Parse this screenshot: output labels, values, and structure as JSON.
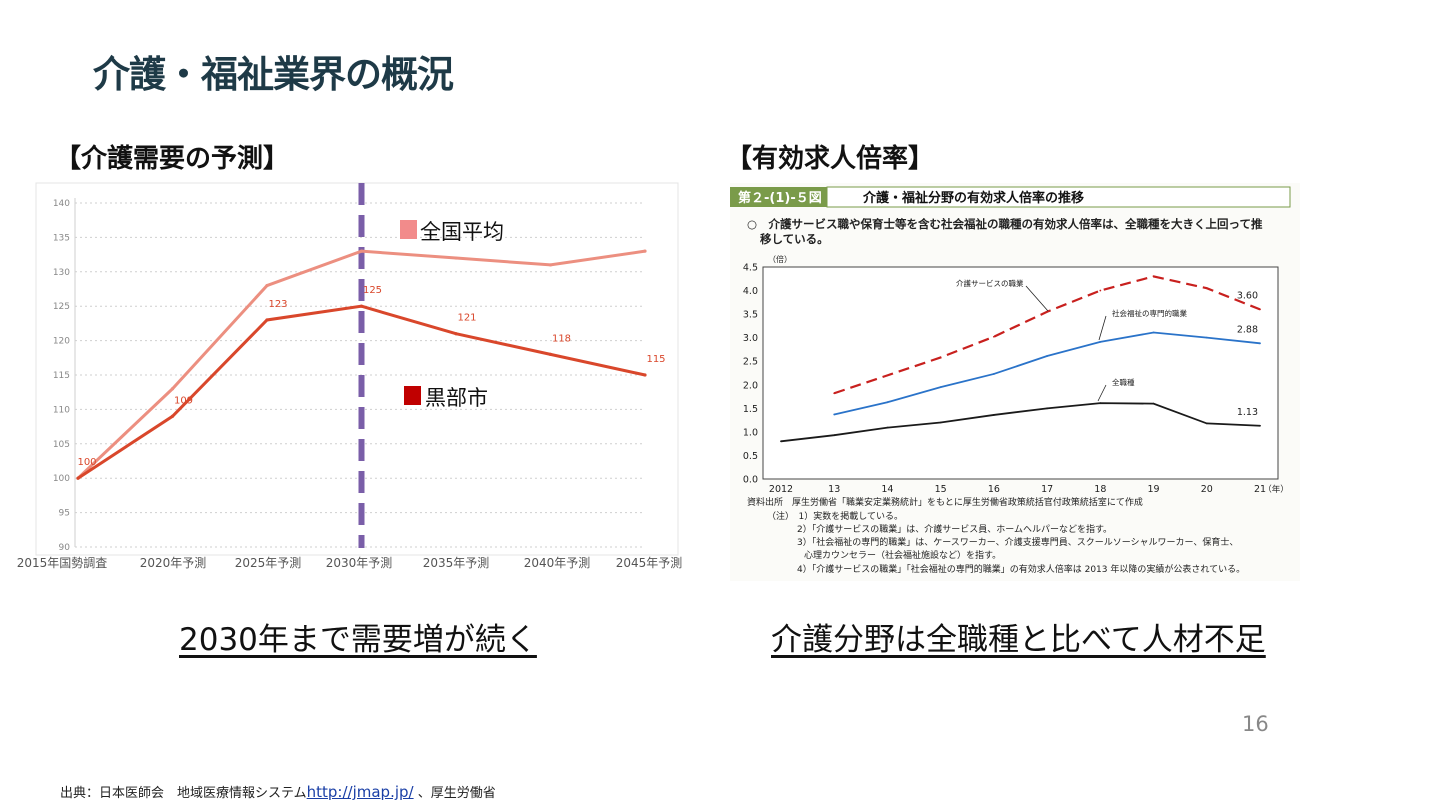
{
  "page": {
    "title": "介護・福祉業界の概況",
    "left_heading": "【介護需要の予測】",
    "right_heading": "【有効求人倍率】",
    "left_caption": "2030年まで需要増が続く",
    "right_caption": "介護分野は全職種と比べて人材不足",
    "page_number": "16",
    "source_prefix": "出典：日本医師会　地域医療情報システム",
    "source_link": "http://jmap.jp/",
    "source_suffix": " 、厚生労働省"
  },
  "chart_data": [
    {
      "type": "line",
      "categories": [
        "2015年国勢調査",
        "2020年予測",
        "2025年予測",
        "2030年予測",
        "2035年予測",
        "2040年予測",
        "2045年予測"
      ],
      "ylim": [
        90,
        140
      ],
      "yticks": [
        90,
        95,
        100,
        105,
        110,
        115,
        120,
        125,
        130,
        135,
        140
      ],
      "grid": true,
      "divider_category": "2030年予測",
      "series": [
        {
          "name": "全国平均",
          "color": "#ec8f80",
          "values": [
            100,
            113,
            128,
            133,
            132,
            131,
            133
          ]
        },
        {
          "name": "黒部市",
          "color": "#d9472b",
          "values": [
            100,
            109,
            123,
            125,
            121,
            118,
            115
          ],
          "data_labels": [
            "100",
            "109",
            "123",
            "125",
            "121",
            "118",
            "115"
          ]
        }
      ],
      "legend_colors": {
        "全国平均": "#f28b8b",
        "黒部市": "#c00000"
      }
    },
    {
      "type": "line",
      "header_tag": "第２-(1)-５図",
      "header_title": "介護・福祉分野の有効求人倍率の推移",
      "subtitle_line1": "○　介護サービス職や保育士等を含む社会福祉の職種の有効求人倍率は、全職種を大きく上回って推",
      "subtitle_line2": "移している。",
      "y_unit": "（倍）",
      "x_unit": "（年）",
      "categories": [
        "2012",
        "13",
        "14",
        "15",
        "16",
        "17",
        "18",
        "19",
        "20",
        "21"
      ],
      "ylim": [
        0.0,
        4.5
      ],
      "yticks": [
        "0.0",
        "0.5",
        "1.0",
        "1.5",
        "2.0",
        "2.5",
        "3.0",
        "3.5",
        "4.0",
        "4.5"
      ],
      "series": [
        {
          "name": "介護サービスの職業",
          "color": "#c8201e",
          "dash": true,
          "values": [
            null,
            1.82,
            2.2,
            2.58,
            3.02,
            3.55,
            4.0,
            4.3,
            4.05,
            3.6
          ],
          "end_label": "3.60"
        },
        {
          "name": "社会福祉の専門的職業",
          "color": "#2a73c9",
          "values": [
            null,
            1.37,
            1.63,
            1.95,
            2.23,
            2.61,
            2.91,
            3.11,
            3.0,
            2.88
          ],
          "end_label": "2.88"
        },
        {
          "name": "全職種",
          "color": "#1a1a1a",
          "values": [
            0.8,
            0.93,
            1.09,
            1.2,
            1.36,
            1.5,
            1.61,
            1.6,
            1.18,
            1.13
          ],
          "end_label": "1.13"
        }
      ],
      "notes": [
        "資料出所　厚生労働省「職業安定業務統計」をもとに厚生労働省政策統括官付政策統括室にて作成",
        "（注）　1）実数を掲載している。",
        "2）「介護サービスの職業」は、介護サービス員、ホームヘルパーなどを指す。",
        "3）「社会福祉の専門的職業」は、ケースワーカー、介護支援専門員、スクールソーシャルワーカー、保育士、",
        "心理カウンセラー（社会福祉施設など）を指す。",
        "4）「介護サービスの職業」「社会福祉の専門的職業」の有効求人倍率は 2013 年以降の実績が公表されている。"
      ]
    }
  ]
}
